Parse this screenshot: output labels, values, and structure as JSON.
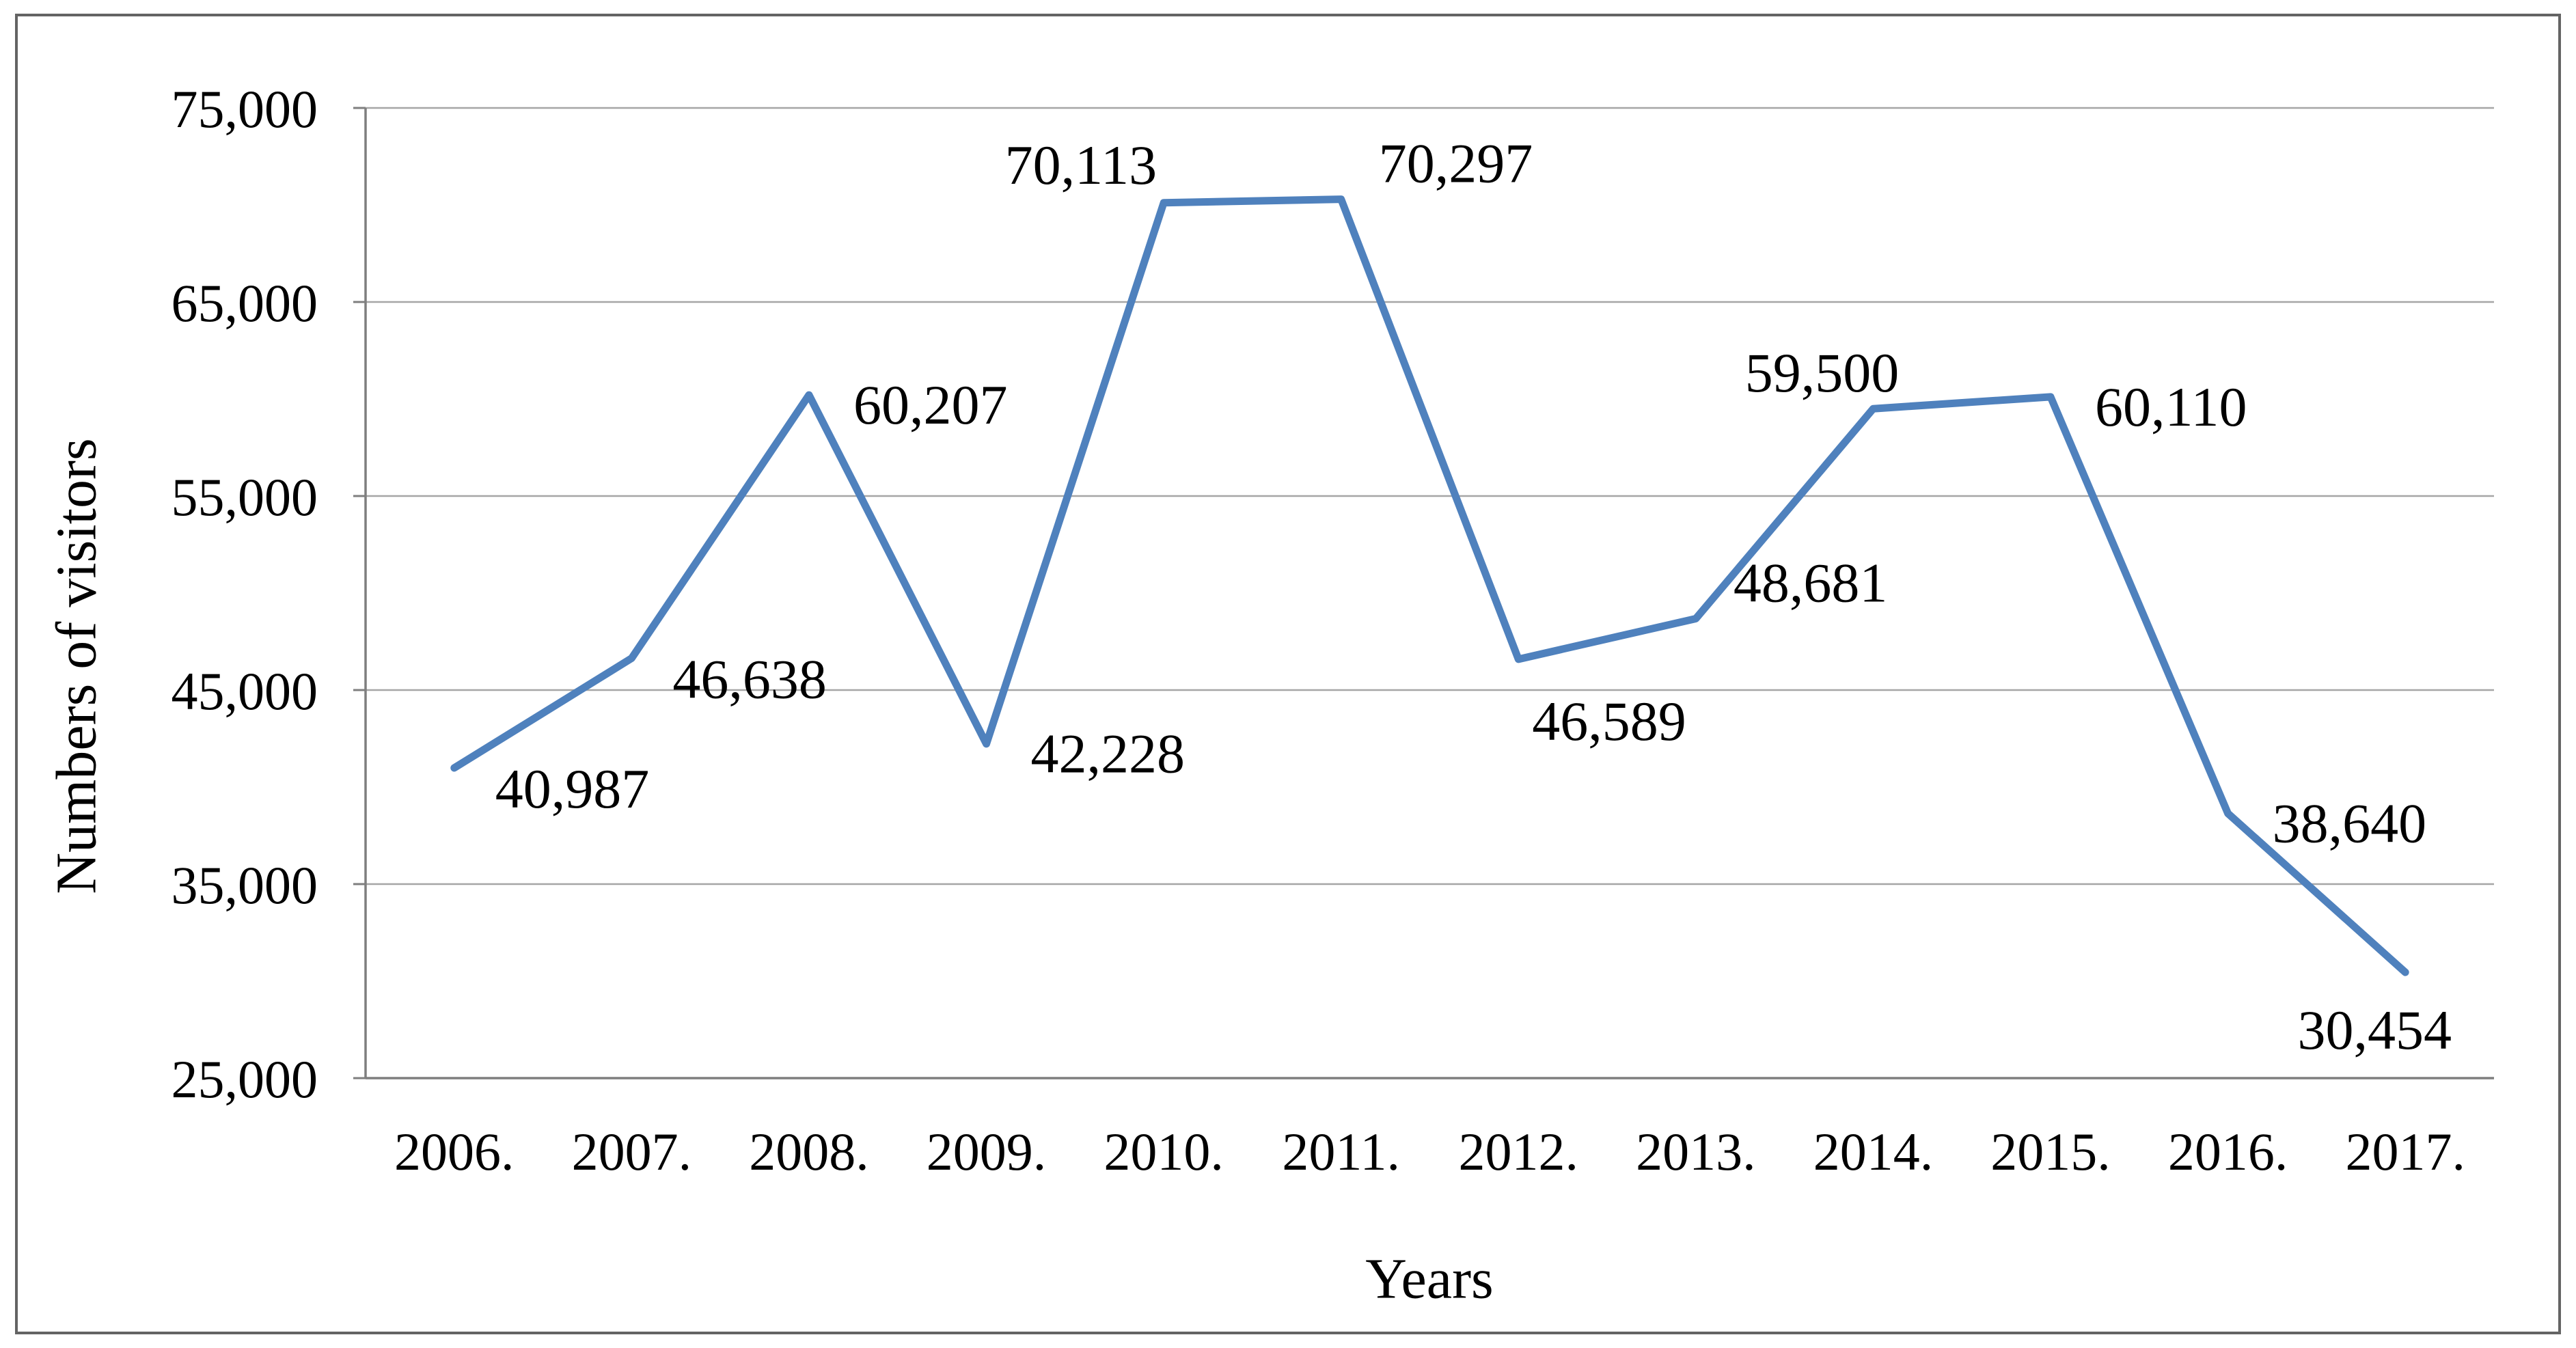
{
  "chart_data": {
    "type": "line",
    "title": "",
    "xlabel": "Years",
    "ylabel": "Numbers of visitors",
    "categories": [
      "2006.",
      "2007.",
      "2008.",
      "2009.",
      "2010.",
      "2011.",
      "2012.",
      "2013.",
      "2014.",
      "2015.",
      "2016.",
      "2017."
    ],
    "values": [
      40987,
      46638,
      60207,
      42228,
      70113,
      70297,
      46589,
      48681,
      59500,
      60110,
      38640,
      30454
    ],
    "data_labels": [
      "40,987",
      "46,638",
      "60,207",
      "42,228",
      "70,113",
      "70,297",
      "46,589",
      "48,681",
      "59,500",
      "60,110",
      "38,640",
      "30,454"
    ],
    "label_placements": [
      "right-low",
      "right-low",
      "right",
      "right",
      "above-left",
      "above-right",
      "below-right",
      "above-right",
      "above-center",
      "right",
      "right",
      "below-center"
    ],
    "y_ticks": [
      "25,000",
      "35,000",
      "45,000",
      "55,000",
      "65,000",
      "75,000"
    ],
    "ylim": [
      25000,
      75000
    ],
    "y_tick_step": 10000,
    "grid": "horizontal",
    "legend": "none",
    "line_color": "#4f81bd",
    "gridline_color": "#a6a6a6",
    "axis_color": "#7f7f7f",
    "border_color": "#646464",
    "text_color": "#000000"
  }
}
